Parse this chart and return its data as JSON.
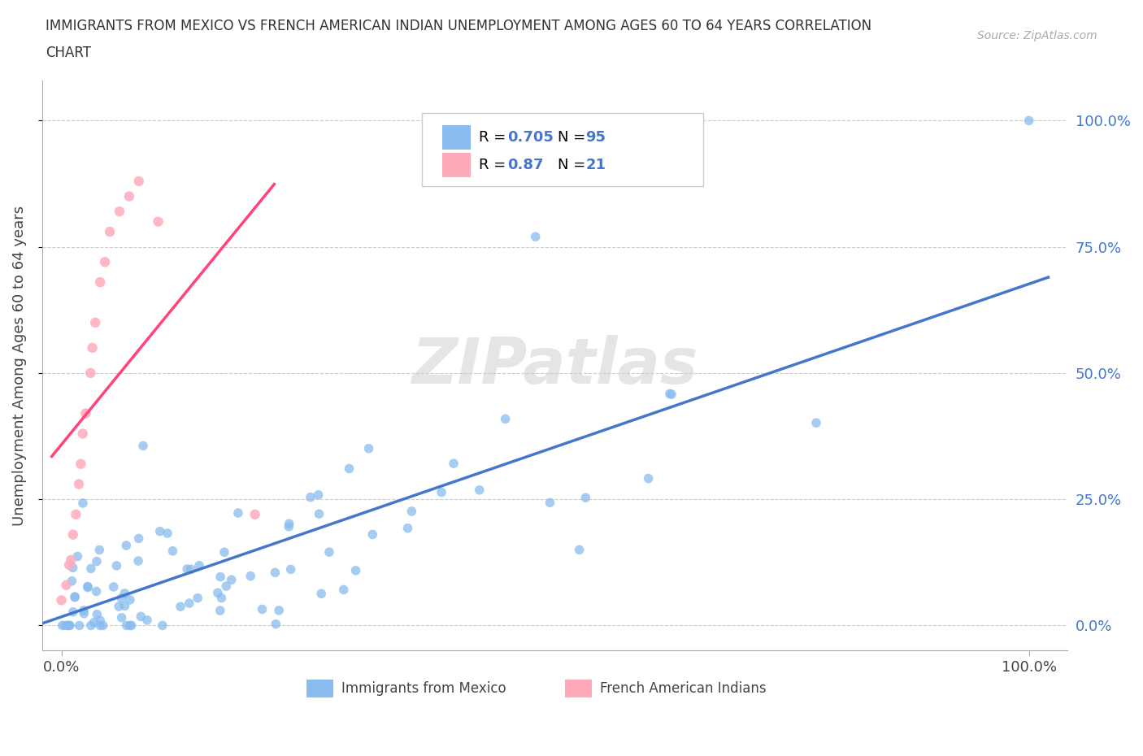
{
  "title_line1": "IMMIGRANTS FROM MEXICO VS FRENCH AMERICAN INDIAN UNEMPLOYMENT AMONG AGES 60 TO 64 YEARS CORRELATION",
  "title_line2": "CHART",
  "source": "Source: ZipAtlas.com",
  "ylabel": "Unemployment Among Ages 60 to 64 years",
  "blue_color": "#88BBEE",
  "pink_color": "#FFAABB",
  "blue_line_color": "#4477CC",
  "pink_line_color": "#FF4477",
  "R_blue": 0.705,
  "N_blue": 95,
  "R_pink": 0.87,
  "N_pink": 21,
  "legend_label_blue": "Immigrants from Mexico",
  "legend_label_pink": "French American Indians",
  "watermark": "ZIPatlas"
}
